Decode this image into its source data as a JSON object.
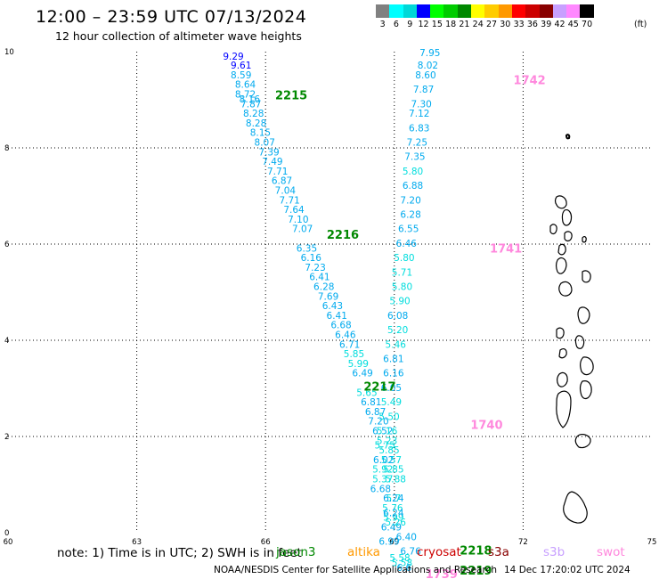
{
  "header": {
    "title": "12:00 – 23:59 UTC 07/13/2024",
    "subtitle": "12 hour collection of altimeter wave heights"
  },
  "color_scale": {
    "colors": [
      "#808080",
      "#00ffff",
      "#00d8d8",
      "#0000ff",
      "#00ff00",
      "#00cc00",
      "#008800",
      "#ffff00",
      "#ffcc00",
      "#ff9900",
      "#ff0000",
      "#cc0000",
      "#880000",
      "#c8a0ff",
      "#ff88ff",
      "#000000"
    ],
    "labels": [
      "",
      "3",
      "6",
      "9",
      "12",
      "15",
      "18",
      "21",
      "24",
      "27",
      "30",
      "33",
      "36",
      "39",
      "42",
      "45",
      "70"
    ],
    "unit": "(ft)"
  },
  "axes": {
    "x_ticks": [
      "60",
      "63",
      "66",
      "69",
      "72",
      "75"
    ],
    "y_ticks": [
      "0",
      "2",
      "4",
      "6",
      "8",
      "10"
    ]
  },
  "tracks": {
    "left": [
      {
        "lon": 65.25,
        "lat": 9.91,
        "v": "9.29"
      },
      {
        "lon": 65.43,
        "lat": 9.72,
        "v": "9.61"
      },
      {
        "lon": 65.43,
        "lat": 9.52,
        "v": "8.59"
      },
      {
        "lon": 65.53,
        "lat": 9.32,
        "v": "8.64"
      },
      {
        "lon": 65.53,
        "lat": 9.12,
        "v": "8.72"
      },
      {
        "lon": 65.63,
        "lat": 9.02,
        "v": "8.16"
      },
      {
        "lon": 65.66,
        "lat": 8.92,
        "v": "7.87"
      },
      {
        "lon": 65.72,
        "lat": 8.72,
        "v": "8.28"
      },
      {
        "lon": 65.78,
        "lat": 8.52,
        "v": "8.28"
      },
      {
        "lon": 65.88,
        "lat": 8.32,
        "v": "8.15"
      },
      {
        "lon": 65.98,
        "lat": 8.12,
        "v": "8.07"
      },
      {
        "lon": 66.08,
        "lat": 7.92,
        "v": "7.39"
      },
      {
        "lon": 66.16,
        "lat": 7.72,
        "v": "7.49"
      },
      {
        "lon": 66.28,
        "lat": 7.52,
        "v": "7.71"
      },
      {
        "lon": 66.38,
        "lat": 7.32,
        "v": "6.87"
      },
      {
        "lon": 66.46,
        "lat": 7.12,
        "v": "7.04"
      },
      {
        "lon": 66.56,
        "lat": 6.92,
        "v": "7.71"
      },
      {
        "lon": 66.66,
        "lat": 6.72,
        "v": "7.64"
      },
      {
        "lon": 66.76,
        "lat": 6.52,
        "v": "7.10"
      },
      {
        "lon": 66.86,
        "lat": 6.32,
        "v": "7.07"
      },
      {
        "lon": 66.96,
        "lat": 5.92,
        "v": "6.35"
      },
      {
        "lon": 67.06,
        "lat": 5.72,
        "v": "6.16"
      },
      {
        "lon": 67.16,
        "lat": 5.52,
        "v": "7.23"
      },
      {
        "lon": 67.26,
        "lat": 5.32,
        "v": "6.41"
      },
      {
        "lon": 67.36,
        "lat": 5.12,
        "v": "6.28"
      },
      {
        "lon": 67.46,
        "lat": 4.92,
        "v": "7.69"
      },
      {
        "lon": 67.56,
        "lat": 4.72,
        "v": "6.43"
      },
      {
        "lon": 67.66,
        "lat": 4.52,
        "v": "6.41"
      },
      {
        "lon": 67.76,
        "lat": 4.32,
        "v": "6.68"
      },
      {
        "lon": 67.86,
        "lat": 4.12,
        "v": "6.46"
      },
      {
        "lon": 67.96,
        "lat": 3.92,
        "v": "6.71"
      },
      {
        "lon": 68.06,
        "lat": 3.72,
        "v": "5.85"
      },
      {
        "lon": 68.16,
        "lat": 3.52,
        "v": "5.99"
      },
      {
        "lon": 68.26,
        "lat": 3.32,
        "v": "6.49"
      },
      {
        "lon": 68.36,
        "lat": 2.92,
        "v": "5.65"
      },
      {
        "lon": 68.46,
        "lat": 2.72,
        "v": "6.81"
      },
      {
        "lon": 68.56,
        "lat": 2.52,
        "v": "6.87"
      },
      {
        "lon": 68.63,
        "lat": 2.32,
        "v": "7.20"
      },
      {
        "lon": 68.73,
        "lat": 2.12,
        "v": "6.52"
      },
      {
        "lon": 68.83,
        "lat": 1.92,
        "v": "5.23"
      },
      {
        "lon": 68.88,
        "lat": 1.72,
        "v": "5.85"
      },
      {
        "lon": 68.93,
        "lat": 1.52,
        "v": "5.57"
      },
      {
        "lon": 68.98,
        "lat": 1.32,
        "v": "5.85"
      },
      {
        "lon": 69.03,
        "lat": 1.12,
        "v": "5.88"
      },
      {
        "lon": 68.98,
        "lat": 0.72,
        "v": "5.7"
      },
      {
        "lon": 68.96,
        "lat": 0.52,
        "v": "5.76"
      },
      {
        "lon": 68.98,
        "lat": 0.32,
        "v": "5.99"
      },
      {
        "lon": 68.93,
        "lat": 0.12,
        "v": "6.49"
      },
      {
        "lon": 68.88,
        "lat": -0.18,
        "v": "6.99"
      }
    ],
    "right": [
      {
        "lon": 69.83,
        "lat": 9.98,
        "v": "7.95"
      },
      {
        "lon": 69.78,
        "lat": 9.72,
        "v": "8.02"
      },
      {
        "lon": 69.73,
        "lat": 9.52,
        "v": "8.60"
      },
      {
        "lon": 69.68,
        "lat": 9.22,
        "v": "7.87"
      },
      {
        "lon": 69.63,
        "lat": 8.92,
        "v": "7.30"
      },
      {
        "lon": 69.58,
        "lat": 8.72,
        "v": "7.12"
      },
      {
        "lon": 69.58,
        "lat": 8.42,
        "v": "6.83"
      },
      {
        "lon": 69.53,
        "lat": 8.12,
        "v": "7.25"
      },
      {
        "lon": 69.48,
        "lat": 7.82,
        "v": "7.35"
      },
      {
        "lon": 69.43,
        "lat": 7.52,
        "v": "5.80"
      },
      {
        "lon": 69.43,
        "lat": 7.22,
        "v": "6.88"
      },
      {
        "lon": 69.38,
        "lat": 6.92,
        "v": "7.20"
      },
      {
        "lon": 69.38,
        "lat": 6.62,
        "v": "6.28"
      },
      {
        "lon": 69.33,
        "lat": 6.32,
        "v": "6.55"
      },
      {
        "lon": 69.28,
        "lat": 6.02,
        "v": "6.46"
      },
      {
        "lon": 69.23,
        "lat": 5.72,
        "v": "5.80"
      },
      {
        "lon": 69.18,
        "lat": 5.42,
        "v": "5.71"
      },
      {
        "lon": 69.18,
        "lat": 5.12,
        "v": "5.80"
      },
      {
        "lon": 69.13,
        "lat": 4.82,
        "v": "5.90"
      },
      {
        "lon": 69.08,
        "lat": 4.52,
        "v": "6.08"
      },
      {
        "lon": 69.08,
        "lat": 4.22,
        "v": "5.20"
      },
      {
        "lon": 69.03,
        "lat": 3.92,
        "v": "5.46"
      },
      {
        "lon": 68.98,
        "lat": 3.62,
        "v": "6.81"
      },
      {
        "lon": 68.98,
        "lat": 3.32,
        "v": "6.16"
      },
      {
        "lon": 68.93,
        "lat": 3.02,
        "v": "6.05"
      },
      {
        "lon": 68.93,
        "lat": 2.72,
        "v": "5.49"
      },
      {
        "lon": 68.88,
        "lat": 2.42,
        "v": "5.50"
      },
      {
        "lon": 68.83,
        "lat": 2.12,
        "v": "5.16"
      },
      {
        "lon": 68.78,
        "lat": 1.82,
        "v": "5.75"
      },
      {
        "lon": 68.75,
        "lat": 1.52,
        "v": "6.02"
      },
      {
        "lon": 68.73,
        "lat": 1.32,
        "v": "5.92"
      },
      {
        "lon": 68.73,
        "lat": 1.12,
        "v": "5.37"
      },
      {
        "lon": 68.68,
        "lat": 0.92,
        "v": "6.68"
      },
      {
        "lon": 68.98,
        "lat": 0.72,
        "v": "6.24"
      },
      {
        "lon": 68.98,
        "lat": 0.42,
        "v": "6.24"
      },
      {
        "lon": 69.03,
        "lat": 0.22,
        "v": "5.26"
      },
      {
        "lon": 69.28,
        "lat": -0.08,
        "v": "6.40"
      },
      {
        "lon": 69.38,
        "lat": -0.38,
        "v": "6.76"
      }
    ],
    "bottom": [
      {
        "lon": 69.13,
        "lat": -0.52,
        "v": "5.58"
      },
      {
        "lon": 69.18,
        "lat": -0.62,
        "v": "5.58"
      },
      {
        "lon": 69.23,
        "lat": -0.72,
        "v": "6.6"
      }
    ]
  },
  "pass_labels": [
    {
      "text": "2215",
      "lon": 66.6,
      "lat": 9.1,
      "color": "#008800"
    },
    {
      "text": "2216",
      "lon": 67.8,
      "lat": 6.2,
      "color": "#008800"
    },
    {
      "text": "2217",
      "lon": 68.66,
      "lat": 3.05,
      "color": "#008800"
    },
    {
      "text": "2218",
      "lon": 70.9,
      "lat": -0.36,
      "color": "#008800"
    },
    {
      "text": "2219",
      "lon": 70.9,
      "lat": -0.78,
      "color": "#008800"
    },
    {
      "text": "1742",
      "lon": 72.15,
      "lat": 9.42,
      "color": "#ff88dd"
    },
    {
      "text": "1741",
      "lon": 71.6,
      "lat": 5.92,
      "color": "#ff88dd"
    },
    {
      "text": "1740",
      "lon": 71.15,
      "lat": 2.25,
      "color": "#ff88dd"
    },
    {
      "text": "1739",
      "lon": 70.1,
      "lat": -0.85,
      "color": "#ff88dd"
    }
  ],
  "note": "note: 1) Time is in UTC; 2) SWH is in feet",
  "satellites": [
    {
      "name": "jason3",
      "color": "#008800"
    },
    {
      "name": "altika",
      "color": "#ff9900"
    },
    {
      "name": "cryosat",
      "color": "#cc0000"
    },
    {
      "name": "s3a",
      "color": "#880000"
    },
    {
      "name": "s3b",
      "color": "#c8a0ff"
    },
    {
      "name": "swot",
      "color": "#ff88dd"
    }
  ],
  "footer": {
    "credit": "NOAA/NESDIS Center for Satellite Applications and Research",
    "timestamp": "14 Dec 17:20:02 UTC 2024"
  }
}
